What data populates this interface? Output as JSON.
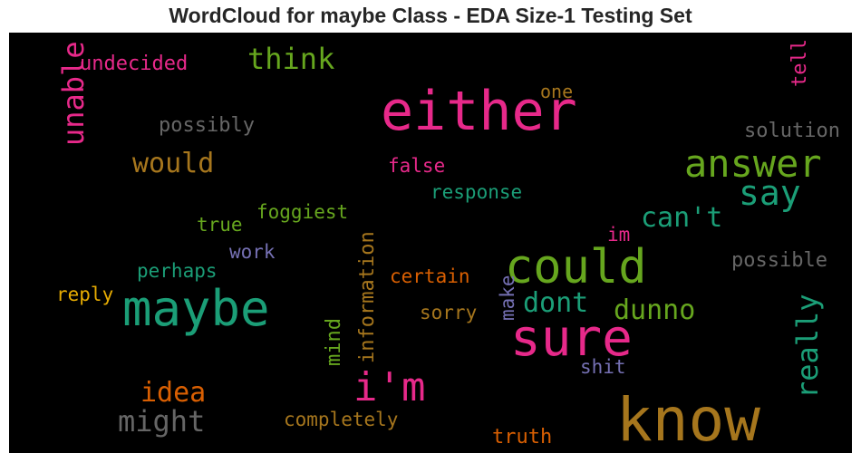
{
  "chart_data": {
    "type": "wordcloud",
    "title": "WordCloud for maybe Class - EDA Size-1 Testing Set",
    "background": "#000000",
    "words": [
      {
        "text": "know",
        "color": "#a6761d"
      },
      {
        "text": "either",
        "color": "#e7298a"
      },
      {
        "text": "sure",
        "color": "#e7298a"
      },
      {
        "text": "maybe",
        "color": "#1b9e77"
      },
      {
        "text": "could",
        "color": "#66a61e"
      },
      {
        "text": "answer",
        "color": "#66a61e"
      },
      {
        "text": "i'm",
        "color": "#e7298a"
      },
      {
        "text": "say",
        "color": "#1b9e77"
      },
      {
        "text": "unable",
        "color": "#e7298a"
      },
      {
        "text": "think",
        "color": "#66a61e"
      },
      {
        "text": "might",
        "color": "#666666"
      },
      {
        "text": "would",
        "color": "#a6761d"
      },
      {
        "text": "really",
        "color": "#1b9e77"
      },
      {
        "text": "idea",
        "color": "#d95f02"
      },
      {
        "text": "can't",
        "color": "#1b9e77"
      },
      {
        "text": "dont",
        "color": "#1b9e77"
      },
      {
        "text": "dunno",
        "color": "#66a61e"
      },
      {
        "text": "undecided",
        "color": "#e7298a"
      },
      {
        "text": "possibly",
        "color": "#666666"
      },
      {
        "text": "solution",
        "color": "#666666"
      },
      {
        "text": "possible",
        "color": "#666666"
      },
      {
        "text": "information",
        "color": "#a6761d"
      },
      {
        "text": "response",
        "color": "#1b9e77"
      },
      {
        "text": "false",
        "color": "#e7298a"
      },
      {
        "text": "one",
        "color": "#a6761d"
      },
      {
        "text": "tell",
        "color": "#e7298a"
      },
      {
        "text": "foggiest",
        "color": "#66a61e"
      },
      {
        "text": "true",
        "color": "#66a61e"
      },
      {
        "text": "work",
        "color": "#7570b3"
      },
      {
        "text": "perhaps",
        "color": "#1b9e77"
      },
      {
        "text": "reply",
        "color": "#e6ab02"
      },
      {
        "text": "certain",
        "color": "#d95f02"
      },
      {
        "text": "sorry",
        "color": "#a6761d"
      },
      {
        "text": "mind",
        "color": "#66a61e"
      },
      {
        "text": "make",
        "color": "#7570b3"
      },
      {
        "text": "im",
        "color": "#e7298a"
      },
      {
        "text": "shit",
        "color": "#7570b3"
      },
      {
        "text": "completely",
        "color": "#a6761d"
      },
      {
        "text": "truth",
        "color": "#d95f02"
      }
    ]
  }
}
